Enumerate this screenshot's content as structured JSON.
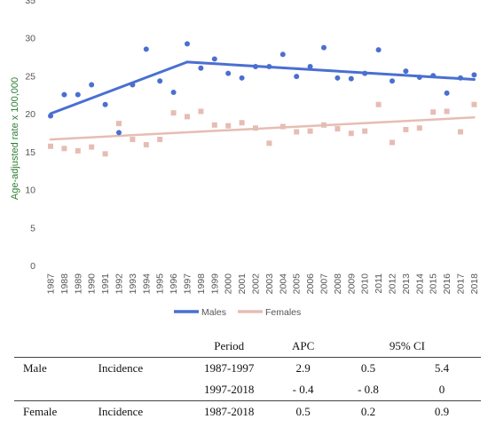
{
  "chart_data": {
    "type": "scatter",
    "title": "",
    "xlabel": "",
    "ylabel": "Age-adjusted rate x 100,000",
    "ylim": [
      0,
      35
    ],
    "yticks": [
      0,
      5,
      10,
      15,
      20,
      25,
      30,
      35
    ],
    "grid": false,
    "legend_position": "bottom",
    "categories": [
      "1987",
      "1988",
      "1989",
      "1990",
      "1991",
      "1992",
      "1993",
      "1994",
      "1995",
      "1996",
      "1997",
      "1998",
      "1999",
      "2000",
      "2001",
      "2002",
      "2003",
      "2004",
      "2005",
      "2006",
      "2007",
      "2008",
      "2009",
      "2010",
      "2011",
      "2012",
      "2013",
      "2014",
      "2015",
      "2016",
      "2017",
      "2018"
    ],
    "series": [
      {
        "name": "Males",
        "color": "#4a6fd0",
        "observed": [
          19.7,
          22.5,
          22.5,
          23.8,
          21.2,
          17.5,
          23.8,
          28.5,
          24.3,
          22.8,
          29.2,
          26.0,
          27.2,
          25.3,
          24.7,
          26.2,
          26.2,
          27.8,
          24.9,
          26.2,
          28.7,
          24.7,
          24.6,
          25.3,
          28.4,
          24.3,
          25.6,
          24.8,
          25.0,
          22.7,
          24.7,
          25.1
        ],
        "fitted_joinpoints": [
          [
            1987,
            20.0
          ],
          [
            1997,
            26.8
          ],
          [
            2018,
            24.5
          ]
        ]
      },
      {
        "name": "Females",
        "color": "#e6bdb3",
        "observed": [
          15.7,
          15.4,
          15.1,
          15.6,
          14.7,
          18.7,
          16.6,
          15.9,
          16.6,
          20.1,
          19.6,
          20.3,
          18.5,
          18.4,
          18.8,
          18.1,
          16.1,
          18.3,
          17.6,
          17.7,
          18.5,
          18.0,
          17.4,
          17.7,
          21.2,
          16.2,
          17.9,
          18.1,
          20.2,
          20.3,
          17.6,
          21.2
        ],
        "fitted_joinpoints": [
          [
            1987,
            16.6
          ],
          [
            2018,
            19.5
          ]
        ]
      }
    ]
  },
  "table": {
    "headers": [
      "",
      "",
      "Period",
      "APC",
      "95% CI",
      ""
    ],
    "rows": [
      {
        "sex": "Male",
        "type": "Incidence",
        "period": "1987-1997",
        "apc": "2.9",
        "ci_low": "0.5",
        "ci_high": "5.4"
      },
      {
        "sex": "",
        "type": "",
        "period": "1997-2018",
        "apc": "- 0.4",
        "ci_low": "- 0.8",
        "ci_high": "0"
      },
      {
        "sex": "Female",
        "type": "Incidence",
        "period": "1987-2018",
        "apc": "0.5",
        "ci_low": "0.2",
        "ci_high": "0.9"
      }
    ]
  }
}
